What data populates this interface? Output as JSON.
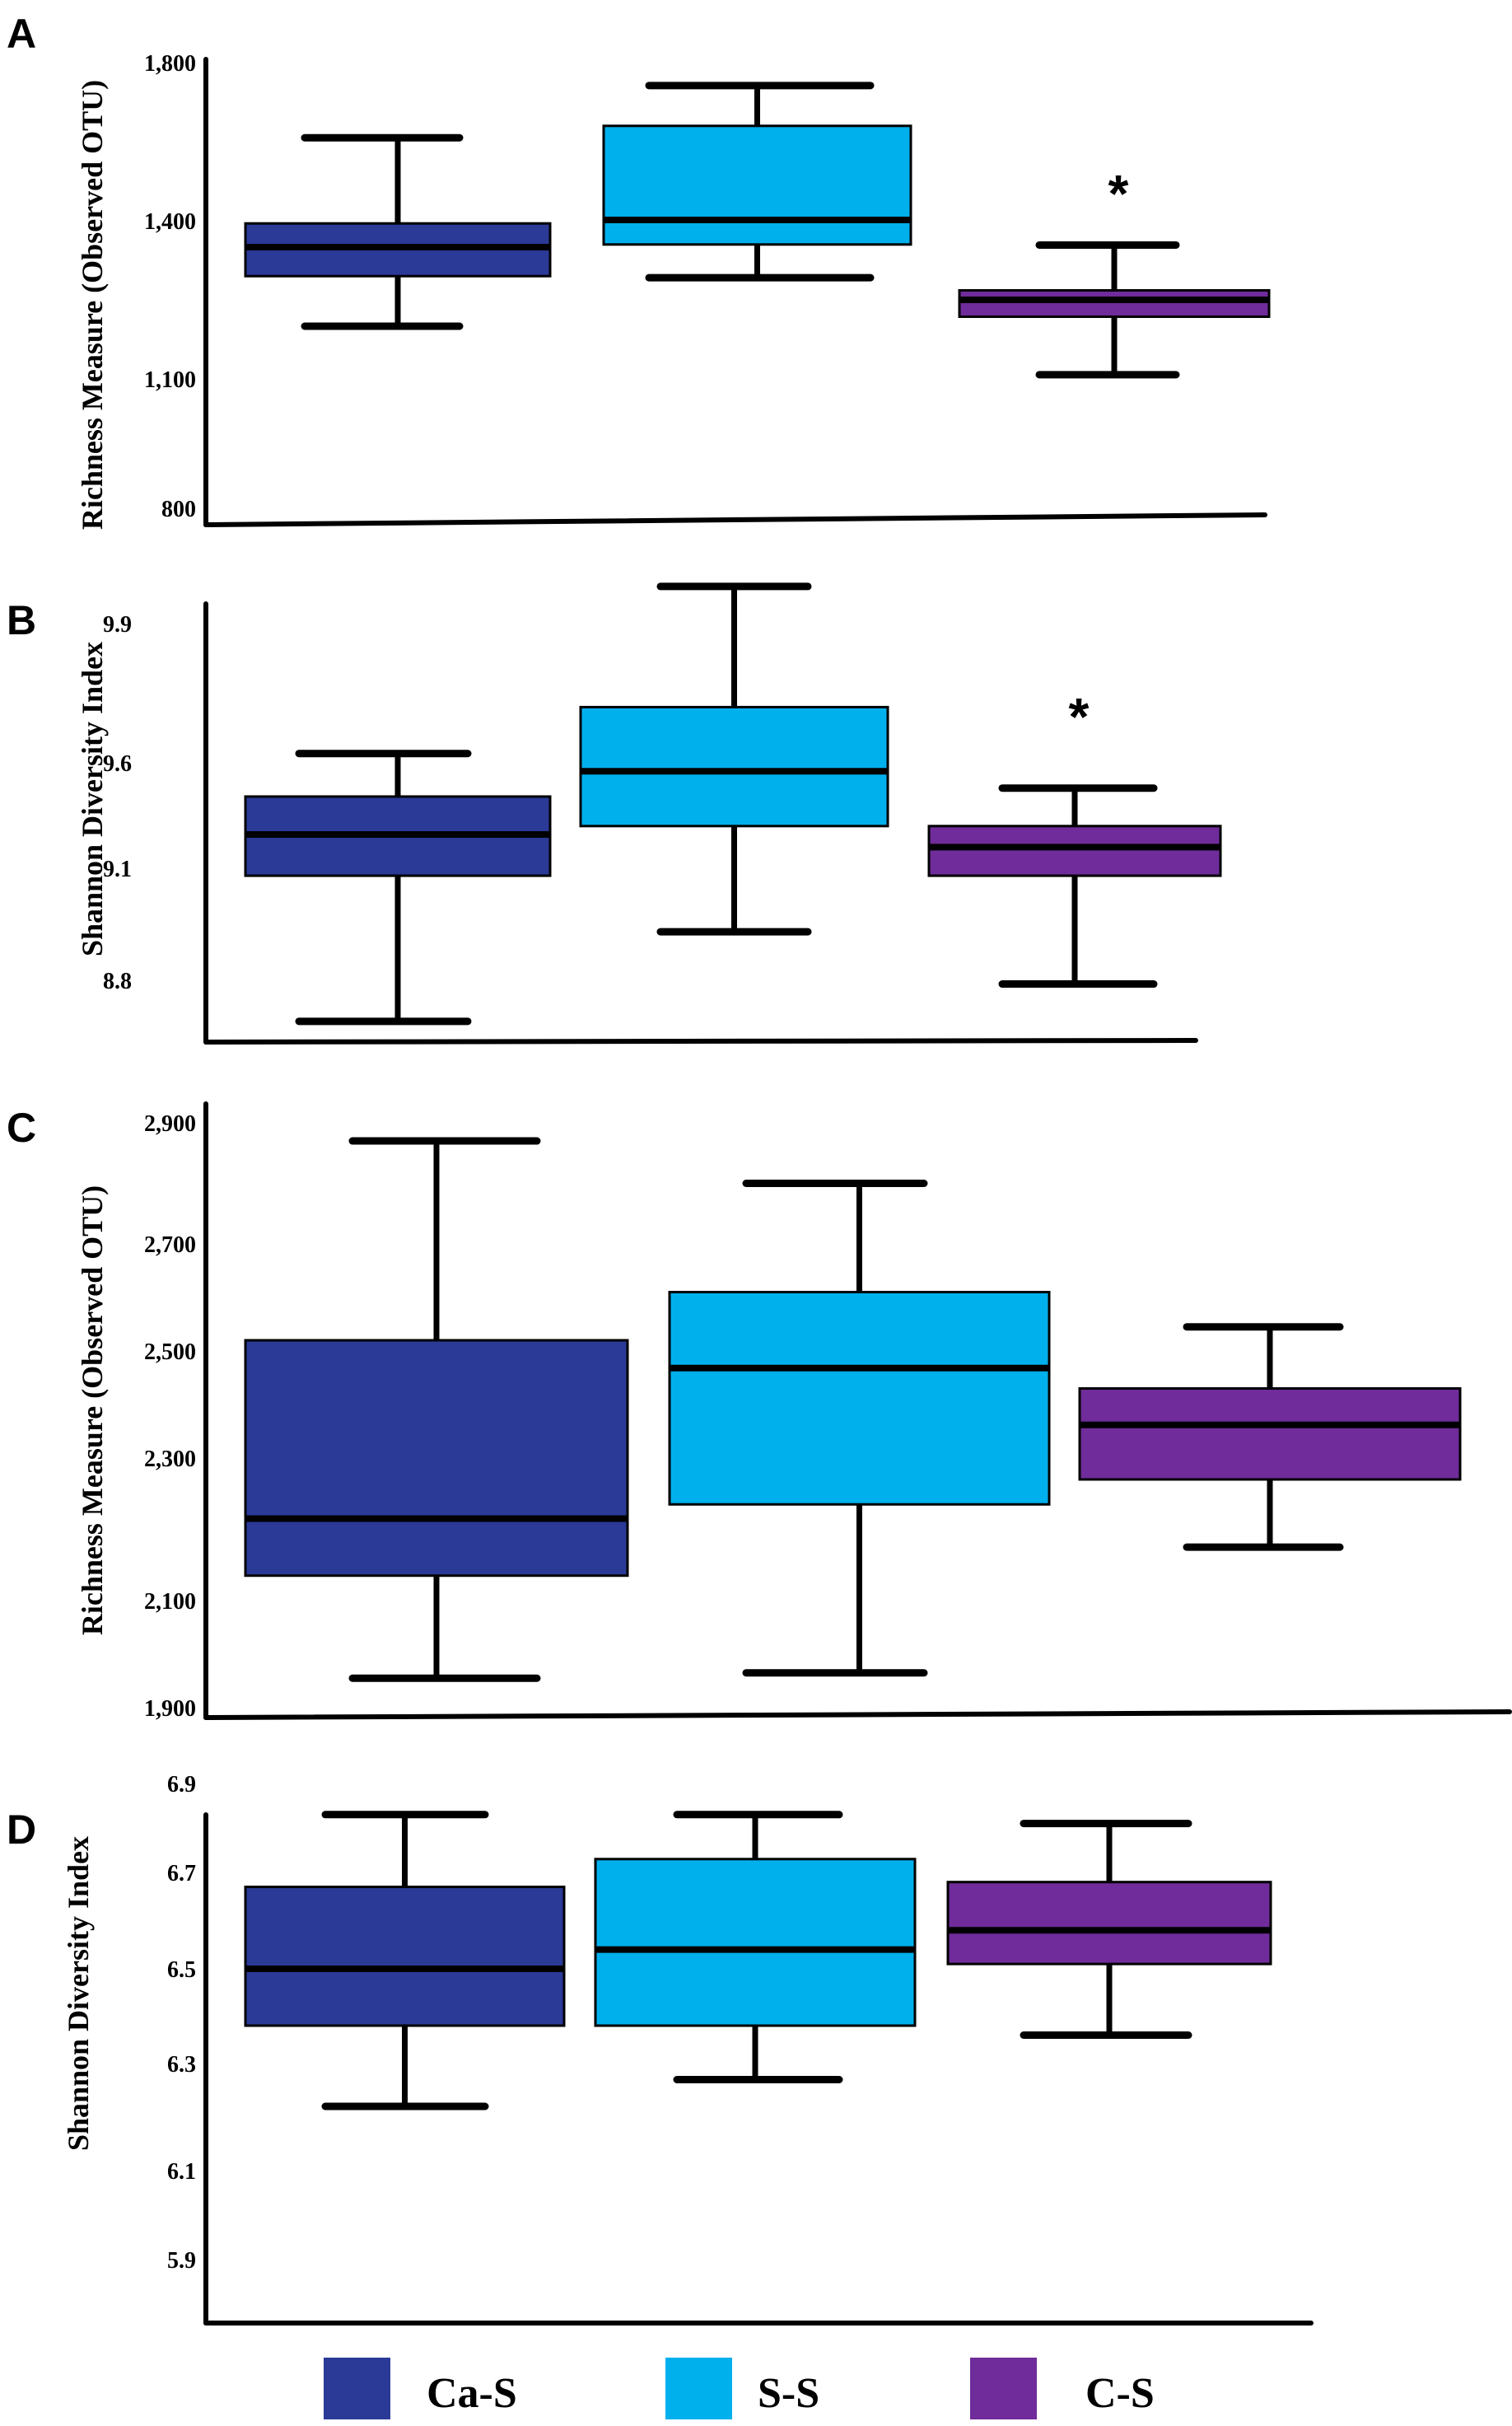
{
  "figure": {
    "legend_title": ""
  },
  "colors": {
    "Ca-S": "#2b3a97",
    "S-S": "#00b0ec",
    "C-S": "#702c9a",
    "axis": "#000000"
  },
  "legend": [
    {
      "name": "Ca-S",
      "color": "#2b3a97"
    },
    {
      "name": "S-S",
      "color": "#00b0ec"
    },
    {
      "name": "C-S",
      "color": "#702c9a"
    }
  ],
  "chart_data": [
    {
      "panel": "A",
      "type": "box",
      "ylabel": "Richness Measure (Observed OTU)",
      "yticks": [
        800,
        1100,
        1400,
        1800
      ],
      "ytick_labels": [
        "800",
        "1,100",
        "1,400",
        "1,800"
      ],
      "categories": [
        "Ca-S",
        "S-S",
        "C-S"
      ],
      "boxes": [
        {
          "group": "Ca-S",
          "min": 1200,
          "q1": 1295,
          "median": 1350,
          "q3": 1395,
          "max": 1610
        },
        {
          "group": "S-S",
          "min": 1292,
          "q1": 1355,
          "median": 1402,
          "q3": 1640,
          "max": 1742
        },
        {
          "group": "C-S",
          "min": 1108,
          "q1": 1218,
          "median": 1250,
          "q3": 1268,
          "max": 1354,
          "annotation": "*"
        }
      ]
    },
    {
      "panel": "B",
      "type": "box",
      "ylabel": "Shannon Diversity Index",
      "yticks": [
        8.8,
        9.1,
        9.6,
        9.9
      ],
      "ytick_labels": [
        "8.8",
        "9.1",
        "9.6",
        "9.9"
      ],
      "categories": [
        "Ca-S",
        "S-S",
        "C-S"
      ],
      "boxes": [
        {
          "group": "Ca-S",
          "min": 8.69,
          "q1": 9.08,
          "median": 9.26,
          "q3": 9.44,
          "max": 9.62
        },
        {
          "group": "S-S",
          "min": 8.93,
          "q1": 9.3,
          "median": 9.56,
          "q3": 9.72,
          "max": 9.98
        },
        {
          "group": "C-S",
          "min": 8.79,
          "q1": 9.08,
          "median": 9.2,
          "q3": 9.3,
          "max": 9.48,
          "annotation": "*"
        }
      ]
    },
    {
      "panel": "C",
      "type": "box",
      "ylabel": "Richness Measure (Observed OTU)",
      "yticks": [
        1900,
        2100,
        2300,
        2500,
        2700,
        2900
      ],
      "ytick_labels": [
        "1,900",
        "2,100",
        "2,300",
        "2,500",
        "2,700",
        "2,900"
      ],
      "categories": [
        "Ca-S",
        "S-S",
        "C-S"
      ],
      "boxes": [
        {
          "group": "Ca-S",
          "min": 1955,
          "q1": 2135,
          "median": 2215,
          "q3": 2520,
          "max": 2870
        },
        {
          "group": "S-S",
          "min": 1965,
          "q1": 2235,
          "median": 2468,
          "q3": 2610,
          "max": 2800
        },
        {
          "group": "C-S",
          "min": 2175,
          "q1": 2270,
          "median": 2362,
          "q3": 2430,
          "max": 2545
        }
      ]
    },
    {
      "panel": "D",
      "type": "box",
      "ylabel": "Shannon Diversity Index",
      "yticks": [
        5.9,
        6.1,
        6.3,
        6.5,
        6.7,
        6.9
      ],
      "ytick_labels": [
        "5.9",
        "6.1",
        "6.3",
        "6.5",
        "6.7",
        "6.9"
      ],
      "categories": [
        "Ca-S",
        "S-S",
        "C-S"
      ],
      "boxes": [
        {
          "group": "Ca-S",
          "min": 6.22,
          "q1": 6.38,
          "median": 6.5,
          "q3": 6.67,
          "max": 6.83
        },
        {
          "group": "S-S",
          "min": 6.27,
          "q1": 6.38,
          "median": 6.54,
          "q3": 6.73,
          "max": 6.83
        },
        {
          "group": "C-S",
          "min": 6.36,
          "q1": 6.51,
          "median": 6.58,
          "q3": 6.68,
          "max": 6.81
        }
      ]
    }
  ]
}
